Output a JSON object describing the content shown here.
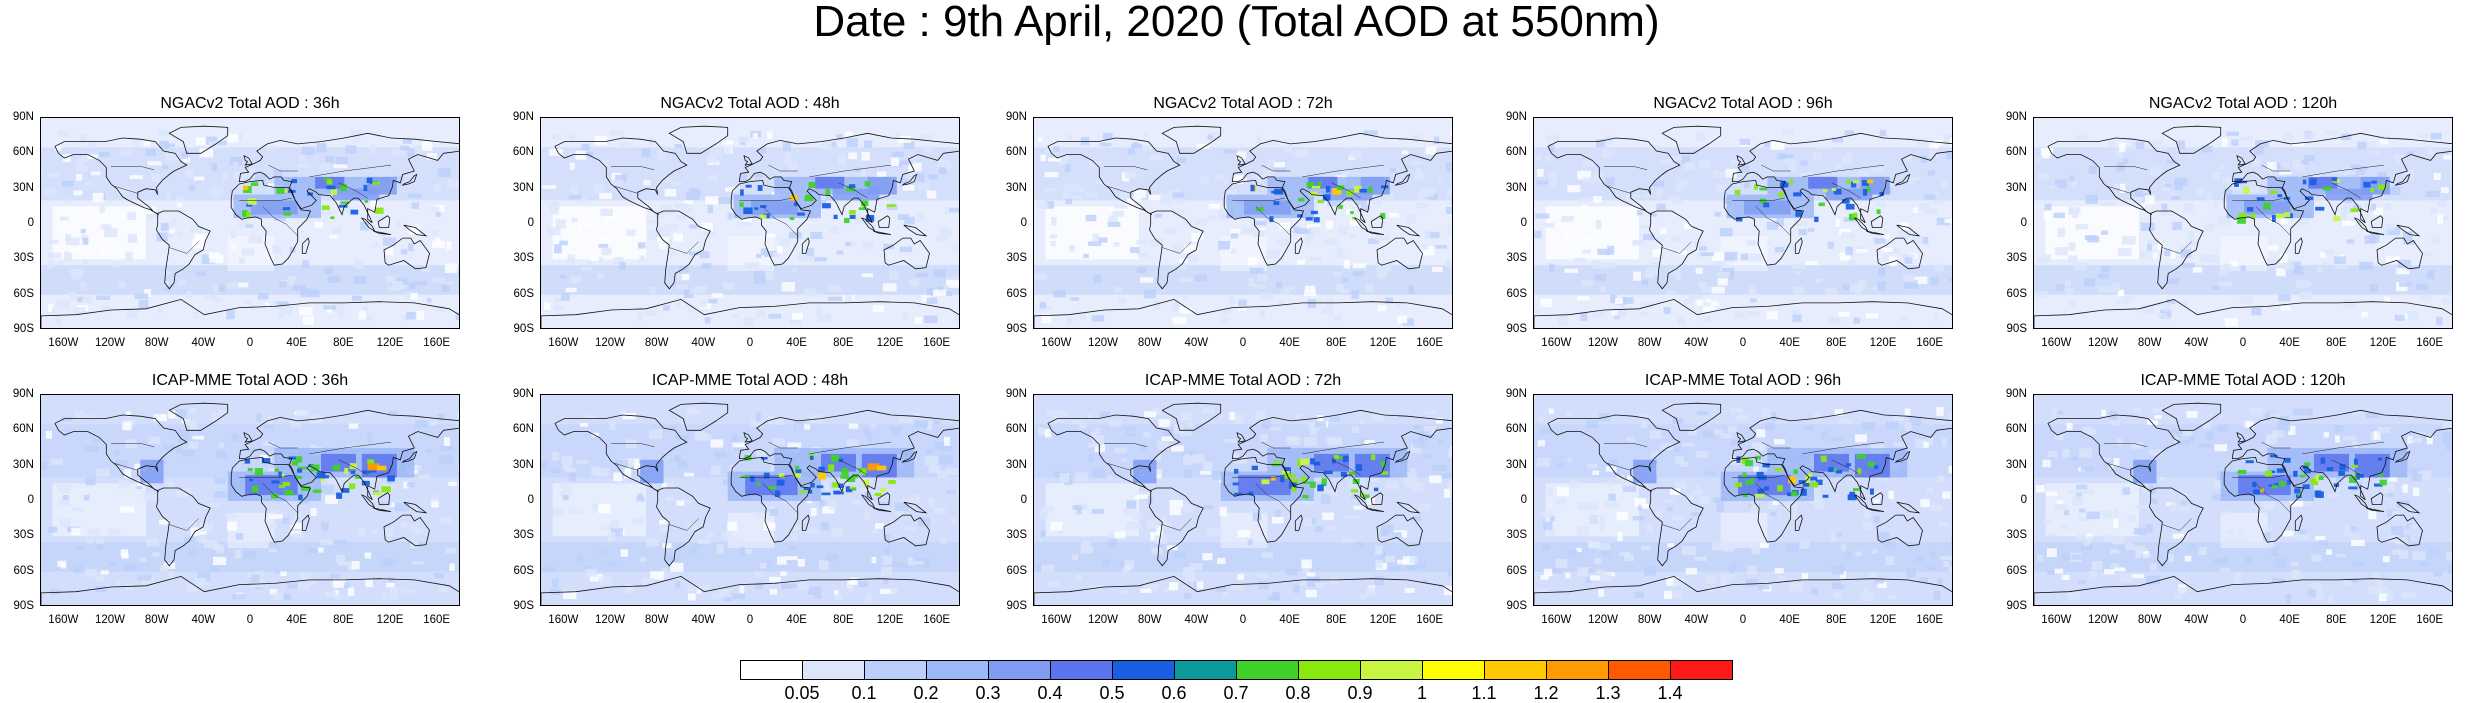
{
  "title": "Date : 9th April, 2020 (Total AOD at 550nm)",
  "panels": [
    {
      "title": "NGACv2 Total AOD : 36h"
    },
    {
      "title": "NGACv2 Total AOD : 48h"
    },
    {
      "title": "NGACv2 Total AOD : 72h"
    },
    {
      "title": "NGACv2 Total AOD : 96h"
    },
    {
      "title": "NGACv2 Total AOD : 120h"
    },
    {
      "title": "ICAP-MME Total AOD : 36h"
    },
    {
      "title": "ICAP-MME Total AOD : 48h"
    },
    {
      "title": "ICAP-MME Total AOD : 72h"
    },
    {
      "title": "ICAP-MME Total AOD : 96h"
    },
    {
      "title": "ICAP-MME Total AOD : 120h"
    }
  ],
  "lat_ticks": [
    "90N",
    "60N",
    "30N",
    "0",
    "30S",
    "60S",
    "90S"
  ],
  "lon_ticks": [
    "160W",
    "120W",
    "80W",
    "40W",
    "0",
    "40E",
    "80E",
    "120E",
    "160E"
  ],
  "colorbar": {
    "labels": [
      "0.05",
      "0.1",
      "0.2",
      "0.3",
      "0.4",
      "0.5",
      "0.6",
      "0.7",
      "0.8",
      "0.9",
      "1",
      "1.1",
      "1.2",
      "1.3",
      "1.4"
    ],
    "colors": [
      "#ffffff",
      "#dce6fb",
      "#bccffa",
      "#9db8f7",
      "#7f9cf2",
      "#5c74ed",
      "#1a5fe0",
      "#0e9a9a",
      "#3fd12a",
      "#88e80f",
      "#c8f542",
      "#ffff00",
      "#ffc800",
      "#ff9a00",
      "#ff5a00",
      "#ff1a1a"
    ]
  }
}
